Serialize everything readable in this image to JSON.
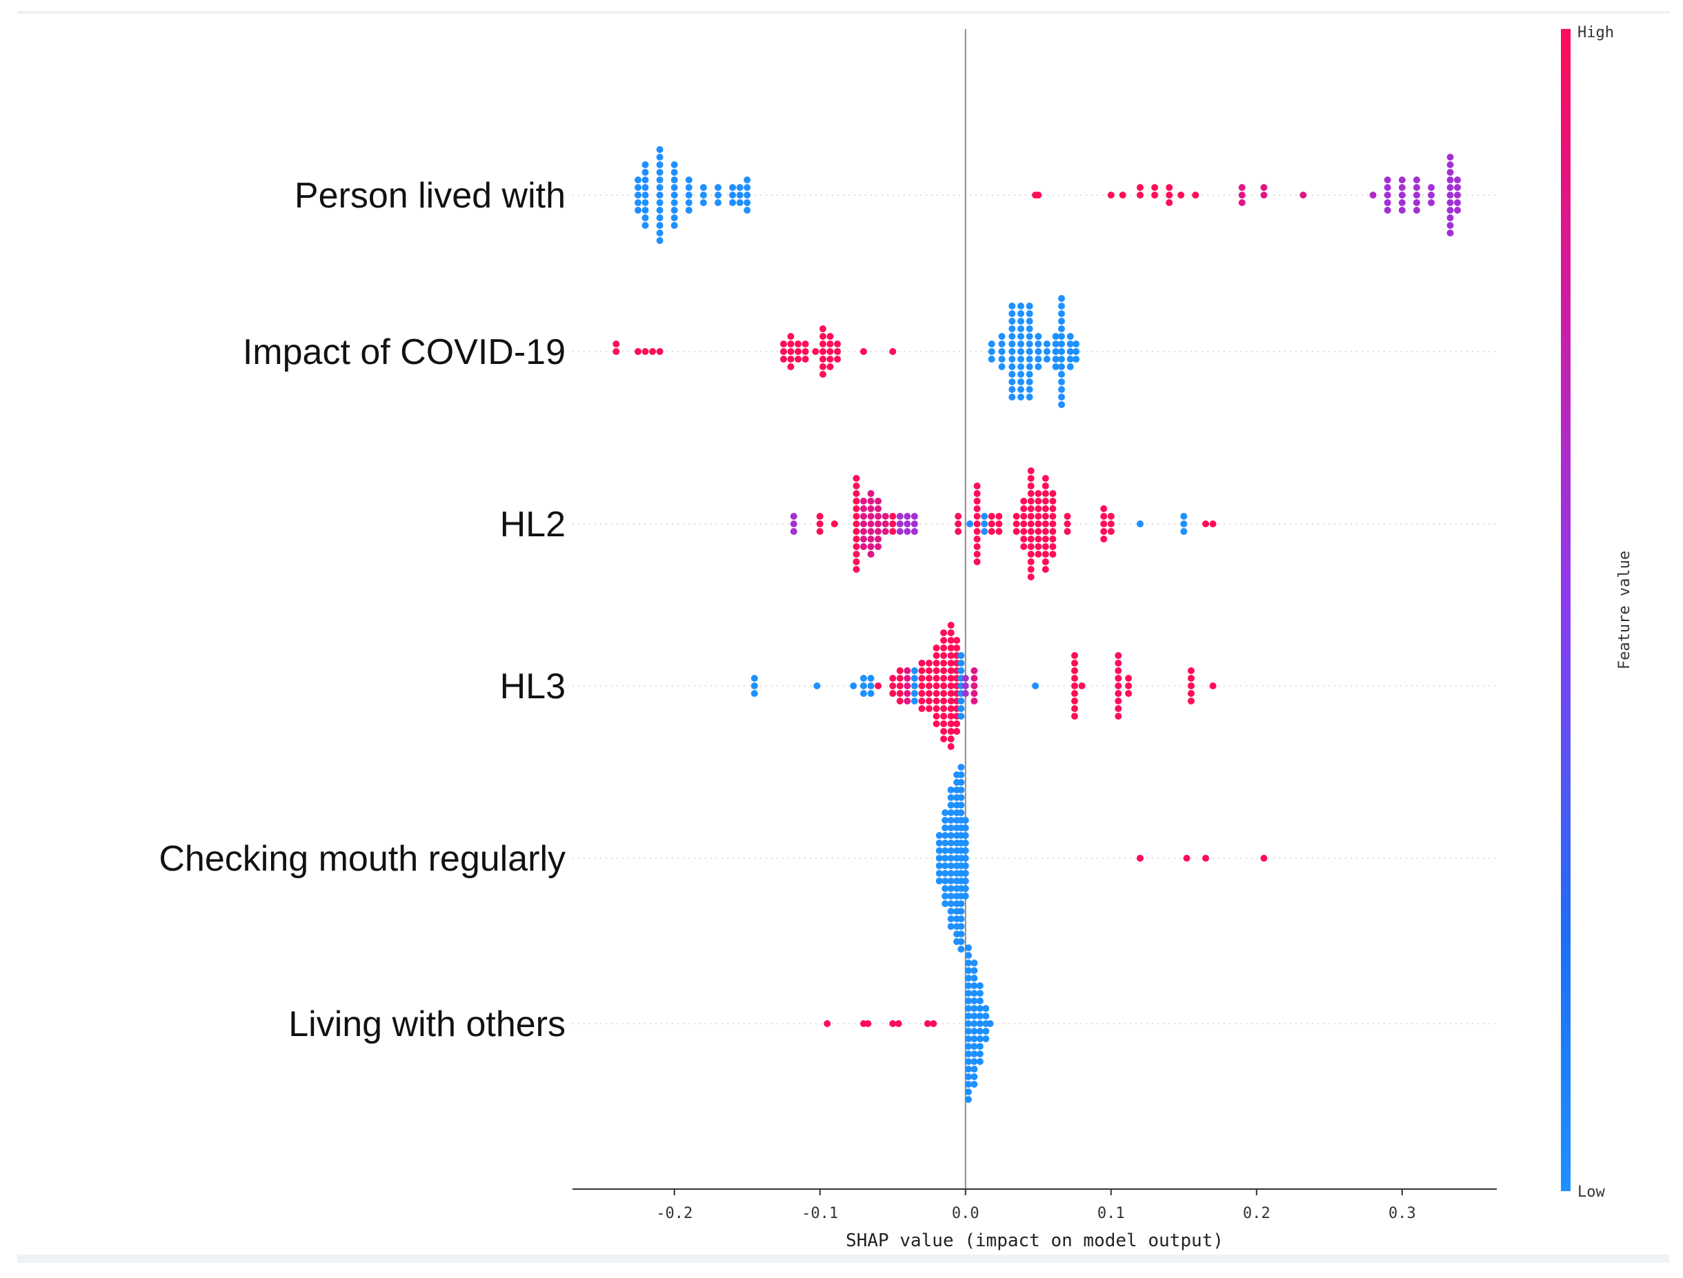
{
  "chart_data": {
    "type": "scatter",
    "subtype": "shap-beeswarm",
    "title": "",
    "xlabel": "SHAP value (impact on model output)",
    "xlim": [
      -0.27,
      0.365
    ],
    "xticks": [
      -0.2,
      -0.1,
      0.0,
      0.1,
      0.2,
      0.3
    ],
    "xtick_labels": [
      "-0.2",
      "-0.1",
      "0.0",
      "0.1",
      "0.2",
      "0.3"
    ],
    "colorbar": {
      "title": "Feature value",
      "high_label": "High",
      "low_label": "Low",
      "low_color": "#1e90ff",
      "mid_color": "#8a3cf0",
      "high_color": "#ff0d57"
    },
    "features": [
      {
        "name": "Person lived with",
        "groups": [
          {
            "x": -0.21,
            "n": 13,
            "c": 0.0
          },
          {
            "x": -0.22,
            "n": 9,
            "c": 0.0
          },
          {
            "x": -0.2,
            "n": 9,
            "c": 0.0
          },
          {
            "x": -0.225,
            "n": 5,
            "c": 0.0
          },
          {
            "x": -0.19,
            "n": 5,
            "c": 0.0
          },
          {
            "x": -0.18,
            "n": 3,
            "c": 0.0
          },
          {
            "x": -0.17,
            "n": 3,
            "c": 0.0
          },
          {
            "x": -0.16,
            "n": 3,
            "c": 0.0
          },
          {
            "x": -0.155,
            "n": 3,
            "c": 0.0
          },
          {
            "x": -0.15,
            "n": 5,
            "c": 0.0
          },
          {
            "x": 0.048,
            "n": 1,
            "c": 1.0
          },
          {
            "x": 0.05,
            "n": 1,
            "c": 1.0
          },
          {
            "x": 0.1,
            "n": 1,
            "c": 1.0
          },
          {
            "x": 0.108,
            "n": 1,
            "c": 1.0
          },
          {
            "x": 0.12,
            "n": 2,
            "c": 1.0
          },
          {
            "x": 0.13,
            "n": 2,
            "c": 1.0
          },
          {
            "x": 0.14,
            "n": 3,
            "c": 1.0
          },
          {
            "x": 0.148,
            "n": 1,
            "c": 1.0
          },
          {
            "x": 0.158,
            "n": 1,
            "c": 1.0
          },
          {
            "x": 0.19,
            "n": 3,
            "c": 0.85
          },
          {
            "x": 0.205,
            "n": 2,
            "c": 0.85
          },
          {
            "x": 0.232,
            "n": 1,
            "c": 0.85
          },
          {
            "x": 0.28,
            "n": 1,
            "c": 0.65
          },
          {
            "x": 0.29,
            "n": 5,
            "c": 0.6
          },
          {
            "x": 0.3,
            "n": 5,
            "c": 0.6
          },
          {
            "x": 0.31,
            "n": 5,
            "c": 0.6
          },
          {
            "x": 0.32,
            "n": 3,
            "c": 0.6
          },
          {
            "x": 0.333,
            "n": 11,
            "c": 0.6
          },
          {
            "x": 0.338,
            "n": 5,
            "c": 0.6
          }
        ]
      },
      {
        "name": "Impact of COVID-19",
        "groups": [
          {
            "x": -0.24,
            "n": 2,
            "c": 1.0
          },
          {
            "x": -0.225,
            "n": 1,
            "c": 1.0
          },
          {
            "x": -0.22,
            "n": 1,
            "c": 1.0
          },
          {
            "x": -0.215,
            "n": 1,
            "c": 1.0
          },
          {
            "x": -0.21,
            "n": 1,
            "c": 1.0
          },
          {
            "x": -0.125,
            "n": 3,
            "c": 1.0
          },
          {
            "x": -0.12,
            "n": 5,
            "c": 1.0
          },
          {
            "x": -0.115,
            "n": 3,
            "c": 1.0
          },
          {
            "x": -0.11,
            "n": 3,
            "c": 1.0
          },
          {
            "x": -0.103,
            "n": 1,
            "c": 1.0
          },
          {
            "x": -0.098,
            "n": 7,
            "c": 1.0
          },
          {
            "x": -0.093,
            "n": 5,
            "c": 1.0
          },
          {
            "x": -0.088,
            "n": 3,
            "c": 1.0
          },
          {
            "x": -0.07,
            "n": 1,
            "c": 1.0
          },
          {
            "x": -0.05,
            "n": 1,
            "c": 1.0
          },
          {
            "x": 0.018,
            "n": 3,
            "c": 0.0
          },
          {
            "x": 0.025,
            "n": 5,
            "c": 0.0
          },
          {
            "x": 0.032,
            "n": 13,
            "c": 0.0
          },
          {
            "x": 0.038,
            "n": 13,
            "c": 0.0
          },
          {
            "x": 0.044,
            "n": 13,
            "c": 0.0
          },
          {
            "x": 0.05,
            "n": 5,
            "c": 0.0
          },
          {
            "x": 0.056,
            "n": 3,
            "c": 0.0
          },
          {
            "x": 0.062,
            "n": 5,
            "c": 0.0
          },
          {
            "x": 0.066,
            "n": 15,
            "c": 0.0
          },
          {
            "x": 0.072,
            "n": 5,
            "c": 0.0
          },
          {
            "x": 0.076,
            "n": 3,
            "c": 0.0
          }
        ]
      },
      {
        "name": "HL2",
        "groups": [
          {
            "x": -0.118,
            "n": 3,
            "c": 0.6
          },
          {
            "x": -0.1,
            "n": 3,
            "c": 1.0
          },
          {
            "x": -0.09,
            "n": 1,
            "c": 1.0
          },
          {
            "x": -0.075,
            "n": 13,
            "c": 1.0
          },
          {
            "x": -0.07,
            "n": 7,
            "c": 0.85
          },
          {
            "x": -0.065,
            "n": 9,
            "c": 0.85
          },
          {
            "x": -0.06,
            "n": 7,
            "c": 0.85
          },
          {
            "x": -0.055,
            "n": 3,
            "c": 0.85
          },
          {
            "x": -0.05,
            "n": 3,
            "c": 1.0
          },
          {
            "x": -0.045,
            "n": 3,
            "c": 0.6
          },
          {
            "x": -0.04,
            "n": 3,
            "c": 0.6
          },
          {
            "x": -0.035,
            "n": 3,
            "c": 0.6
          },
          {
            "x": -0.005,
            "n": 3,
            "c": 1.0
          },
          {
            "x": 0.003,
            "n": 1,
            "c": 0.0
          },
          {
            "x": 0.008,
            "n": 11,
            "c": 1.0
          },
          {
            "x": 0.013,
            "n": 3,
            "c": 0.0
          },
          {
            "x": 0.018,
            "n": 3,
            "c": 1.0
          },
          {
            "x": 0.023,
            "n": 3,
            "c": 1.0
          },
          {
            "x": 0.035,
            "n": 3,
            "c": 1.0
          },
          {
            "x": 0.04,
            "n": 7,
            "c": 1.0
          },
          {
            "x": 0.045,
            "n": 15,
            "c": 1.0
          },
          {
            "x": 0.05,
            "n": 9,
            "c": 1.0
          },
          {
            "x": 0.055,
            "n": 13,
            "c": 1.0
          },
          {
            "x": 0.06,
            "n": 9,
            "c": 1.0
          },
          {
            "x": 0.07,
            "n": 3,
            "c": 1.0
          },
          {
            "x": 0.095,
            "n": 5,
            "c": 1.0
          },
          {
            "x": 0.1,
            "n": 3,
            "c": 1.0
          },
          {
            "x": 0.12,
            "n": 1,
            "c": 0.0
          },
          {
            "x": 0.15,
            "n": 3,
            "c": 0.0
          },
          {
            "x": 0.165,
            "n": 1,
            "c": 1.0
          },
          {
            "x": 0.17,
            "n": 1,
            "c": 1.0
          }
        ]
      },
      {
        "name": "HL3",
        "groups": [
          {
            "x": -0.145,
            "n": 3,
            "c": 0.0
          },
          {
            "x": -0.102,
            "n": 1,
            "c": 0.0
          },
          {
            "x": -0.077,
            "n": 1,
            "c": 0.0
          },
          {
            "x": -0.07,
            "n": 3,
            "c": 0.0
          },
          {
            "x": -0.065,
            "n": 3,
            "c": 0.0
          },
          {
            "x": -0.06,
            "n": 1,
            "c": 1.0
          },
          {
            "x": -0.05,
            "n": 3,
            "c": 1.0
          },
          {
            "x": -0.045,
            "n": 5,
            "c": 1.0
          },
          {
            "x": -0.04,
            "n": 5,
            "c": 0.85
          },
          {
            "x": -0.035,
            "n": 5,
            "c": 0.0
          },
          {
            "x": -0.03,
            "n": 7,
            "c": 1.0
          },
          {
            "x": -0.025,
            "n": 7,
            "c": 1.0
          },
          {
            "x": -0.02,
            "n": 11,
            "c": 1.0
          },
          {
            "x": -0.015,
            "n": 15,
            "c": 1.0
          },
          {
            "x": -0.01,
            "n": 17,
            "c": 1.0
          },
          {
            "x": -0.006,
            "n": 13,
            "c": 1.0
          },
          {
            "x": -0.003,
            "n": 9,
            "c": 0.0
          },
          {
            "x": 0.0,
            "n": 3,
            "c": 0.6
          },
          {
            "x": 0.006,
            "n": 5,
            "c": 0.85
          },
          {
            "x": 0.048,
            "n": 1,
            "c": 0.0
          },
          {
            "x": 0.075,
            "n": 9,
            "c": 1.0
          },
          {
            "x": 0.08,
            "n": 1,
            "c": 1.0
          },
          {
            "x": 0.105,
            "n": 9,
            "c": 1.0
          },
          {
            "x": 0.112,
            "n": 3,
            "c": 1.0
          },
          {
            "x": 0.155,
            "n": 5,
            "c": 1.0
          },
          {
            "x": 0.17,
            "n": 1,
            "c": 1.0
          }
        ]
      },
      {
        "name": "Checking mouth regularly",
        "groups": [
          {
            "x": -0.018,
            "n": 7,
            "c": 0.0
          },
          {
            "x": -0.014,
            "n": 13,
            "c": 0.0
          },
          {
            "x": -0.01,
            "n": 19,
            "c": 0.0
          },
          {
            "x": -0.006,
            "n": 23,
            "c": 0.0
          },
          {
            "x": -0.003,
            "n": 25,
            "c": 0.0
          },
          {
            "x": 0.0,
            "n": 11,
            "c": 0.0
          },
          {
            "x": 0.12,
            "n": 1,
            "c": 1.0
          },
          {
            "x": 0.152,
            "n": 1,
            "c": 1.0
          },
          {
            "x": 0.165,
            "n": 1,
            "c": 1.0
          },
          {
            "x": 0.205,
            "n": 1,
            "c": 1.0
          }
        ]
      },
      {
        "name": "Living with others",
        "groups": [
          {
            "x": -0.095,
            "n": 1,
            "c": 1.0
          },
          {
            "x": -0.07,
            "n": 1,
            "c": 1.0
          },
          {
            "x": -0.067,
            "n": 1,
            "c": 1.0
          },
          {
            "x": -0.05,
            "n": 1,
            "c": 1.0
          },
          {
            "x": -0.046,
            "n": 1,
            "c": 1.0
          },
          {
            "x": -0.026,
            "n": 1,
            "c": 1.0
          },
          {
            "x": -0.022,
            "n": 1,
            "c": 1.0
          },
          {
            "x": 0.002,
            "n": 21,
            "c": 0.0
          },
          {
            "x": 0.006,
            "n": 17,
            "c": 0.0
          },
          {
            "x": 0.01,
            "n": 11,
            "c": 0.0
          },
          {
            "x": 0.014,
            "n": 5,
            "c": 0.0
          },
          {
            "x": 0.017,
            "n": 1,
            "c": 0.0
          }
        ]
      }
    ]
  }
}
